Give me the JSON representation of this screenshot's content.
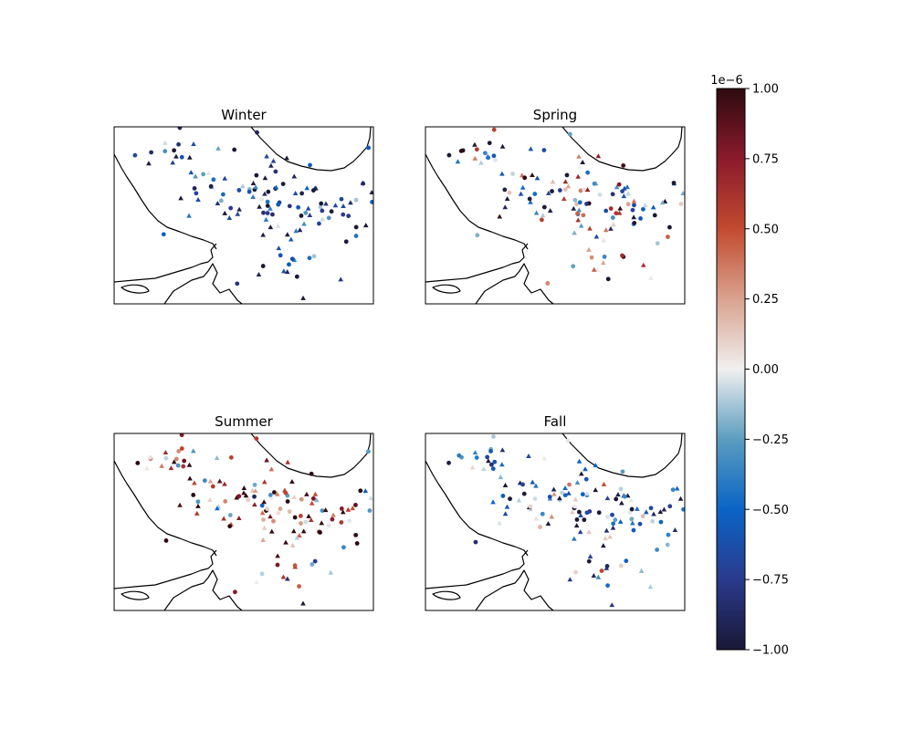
{
  "chart_data": {
    "type": "scatter",
    "subtype": "map-panels-with-colorbar",
    "panels": [
      {
        "title": "Winter",
        "tendency": -0.75,
        "spread": 0.35
      },
      {
        "title": "Spring",
        "tendency": -0.2,
        "spread": 0.75
      },
      {
        "title": "Summer",
        "tendency": 0.45,
        "spread": 0.6
      },
      {
        "title": "Fall",
        "tendency": -0.55,
        "spread": 0.45
      }
    ],
    "markers": [
      "circle",
      "triangle"
    ],
    "colorbar": {
      "vmin": -1.0,
      "vmax": 1.0,
      "scale_label": "1e−6",
      "ticks": [
        -1.0,
        -0.75,
        -0.5,
        -0.25,
        0.0,
        0.25,
        0.5,
        0.75,
        1.0
      ],
      "tick_labels": [
        "−1.00",
        "−0.75",
        "−0.50",
        "−0.25",
        "0.00",
        "0.25",
        "0.50",
        "0.75",
        "1.00"
      ],
      "colormap": [
        "#1a1836",
        "#2a3a8c",
        "#0a64c6",
        "#5b9dbf",
        "#f0efef",
        "#d9a28e",
        "#c24a2f",
        "#8b1a2c",
        "#2d0b10"
      ]
    }
  }
}
